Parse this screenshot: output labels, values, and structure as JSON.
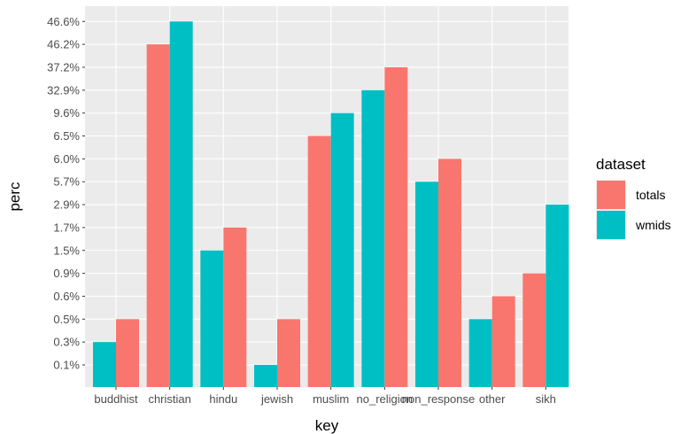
{
  "chart_data": {
    "type": "bar",
    "xlabel": "key",
    "ylabel": "perc",
    "categories": [
      "buddhist",
      "christian",
      "hindu",
      "jewish",
      "muslim",
      "no_religion",
      "non_response",
      "other",
      "sikh"
    ],
    "y_tick_labels": [
      "0.1%",
      "0.3%",
      "0.5%",
      "0.6%",
      "0.9%",
      "1.5%",
      "1.7%",
      "2.9%",
      "5.7%",
      "6.0%",
      "6.5%",
      "9.6%",
      "32.9%",
      "37.2%",
      "46.2%",
      "46.6%"
    ],
    "y_scale": "categorical (discrete tick labels, bars reach the level of their label)",
    "legend": {
      "title": "dataset",
      "position": "right"
    },
    "grid": true,
    "series": [
      {
        "name": "totals",
        "color": "#F8766D",
        "values": [
          "0.5%",
          "46.2%",
          "1.7%",
          "0.5%",
          "6.5%",
          "37.2%",
          "6.0%",
          "0.6%",
          "0.9%"
        ]
      },
      {
        "name": "wmids",
        "color": "#00BFC4",
        "values": [
          "0.3%",
          "46.6%",
          "1.5%",
          "0.1%",
          "9.6%",
          "32.9%",
          "5.7%",
          "0.5%",
          "2.9%"
        ]
      }
    ],
    "order_within_group": [
      [
        "wmids",
        "totals"
      ],
      [
        "totals",
        "wmids"
      ],
      [
        "wmids",
        "totals"
      ],
      [
        "wmids",
        "totals"
      ],
      [
        "totals",
        "wmids"
      ],
      [
        "wmids",
        "totals"
      ],
      [
        "wmids",
        "totals"
      ],
      [
        "wmids",
        "totals"
      ],
      [
        "totals",
        "wmids"
      ]
    ]
  },
  "colors": {
    "panel": "#EBEBEB",
    "grid_major": "#FFFFFF"
  }
}
